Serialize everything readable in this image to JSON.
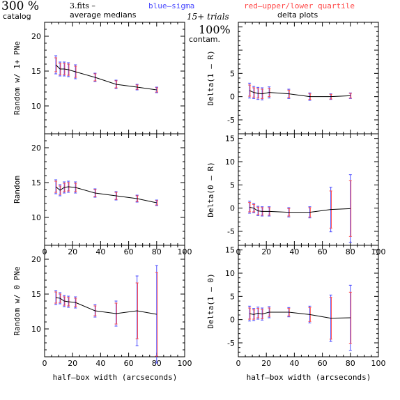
{
  "header": {
    "top_left_big": "300 %",
    "top_left_small": "catalog",
    "file_label": "3.fits  –",
    "subtitle": "average medians",
    "blue_label": "blue–sigma",
    "red_label": "red–upper/lower quartile",
    "trials": "15+ trials",
    "contam_big": "100%",
    "contam_small": "contam.",
    "delta_title": "delta plots"
  },
  "colors": {
    "blue": "#4a4aff",
    "red": "#ff4a4a",
    "line": "#000000"
  },
  "xlabel": "half–box width (arcseconds)",
  "chart_data": [
    {
      "type": "line",
      "panel": "left-top",
      "ylabel": "Random w/ 1+ PNe",
      "xlim": [
        0,
        100
      ],
      "ylim": [
        6,
        22
      ],
      "xticks": [
        "0",
        "20",
        "40",
        "60",
        "80",
        "100"
      ],
      "xticks_shown": false,
      "yticks": [
        "10",
        "15",
        "20"
      ],
      "x": [
        8,
        11,
        14,
        17,
        22,
        36,
        51,
        66,
        80
      ],
      "y": [
        15.9,
        15.3,
        15.3,
        15.2,
        14.9,
        14.1,
        13.1,
        12.7,
        12.3
      ],
      "blue_err": [
        1.3,
        1.0,
        1.0,
        1.0,
        1.0,
        0.6,
        0.6,
        0.4,
        0.4
      ],
      "red_err": [
        1.0,
        0.8,
        0.8,
        0.8,
        0.8,
        0.5,
        0.5,
        0.3,
        0.3
      ]
    },
    {
      "type": "line",
      "panel": "right-top",
      "ylabel": "Delta(1 – R)",
      "xlim": [
        0,
        100
      ],
      "ylim": [
        -8,
        16
      ],
      "xticks": [
        "0",
        "20",
        "40",
        "60",
        "80",
        "100"
      ],
      "xticks_shown": false,
      "yticks": [
        "-5",
        "0",
        "5"
      ],
      "x": [
        8,
        11,
        14,
        17,
        22,
        36,
        51,
        66,
        80
      ],
      "y": [
        1.3,
        0.9,
        0.7,
        0.6,
        0.9,
        0.6,
        0.0,
        0.0,
        0.2
      ],
      "blue_err": [
        1.6,
        1.3,
        1.3,
        1.3,
        1.2,
        1.0,
        0.8,
        0.6,
        0.6
      ],
      "red_err": [
        1.2,
        1.0,
        1.0,
        1.0,
        0.9,
        0.8,
        0.6,
        0.5,
        0.5
      ]
    },
    {
      "type": "line",
      "panel": "left-middle",
      "ylabel": "Random",
      "xlim": [
        0,
        100
      ],
      "ylim": [
        6,
        22
      ],
      "xticks": [
        "0",
        "20",
        "40",
        "60",
        "80",
        "100"
      ],
      "xticks_shown": true,
      "yticks": [
        "10",
        "15",
        "20"
      ],
      "x": [
        8,
        11,
        14,
        17,
        22,
        36,
        51,
        66,
        80
      ],
      "y": [
        14.4,
        13.9,
        14.3,
        14.4,
        14.3,
        13.5,
        13.1,
        12.7,
        12.1
      ],
      "blue_err": [
        1.0,
        0.8,
        0.8,
        0.8,
        0.8,
        0.6,
        0.6,
        0.5,
        0.4
      ],
      "red_err": [
        0.8,
        0.6,
        0.6,
        0.6,
        0.6,
        0.5,
        0.5,
        0.4,
        0.3
      ]
    },
    {
      "type": "line",
      "panel": "right-middle",
      "ylabel": "Delta(0 – R)",
      "xlim": [
        0,
        100
      ],
      "ylim": [
        -8,
        16
      ],
      "xticks": [
        "0",
        "20",
        "40",
        "60",
        "80",
        "100"
      ],
      "xticks_shown": true,
      "yticks": [
        "-5",
        "0",
        "5",
        "10",
        "15"
      ],
      "x": [
        8,
        11,
        14,
        17,
        22,
        36,
        51,
        66,
        80
      ],
      "y": [
        0.2,
        0.0,
        -0.6,
        -0.7,
        -0.7,
        -0.9,
        -0.9,
        -0.3,
        -0.1
      ],
      "blue_err": [
        1.3,
        1.0,
        1.0,
        1.0,
        1.0,
        1.0,
        1.2,
        4.8,
        7.3
      ],
      "red_err": [
        1.0,
        0.8,
        0.8,
        0.8,
        0.8,
        0.8,
        1.0,
        4.0,
        6.0
      ]
    },
    {
      "type": "line",
      "panel": "left-bottom",
      "ylabel": "Random w/ 0 PNe",
      "xlim": [
        0,
        100
      ],
      "ylim": [
        6,
        22
      ],
      "xticks": [
        "0",
        "20",
        "40",
        "60",
        "80",
        "100"
      ],
      "xticks_shown": true,
      "yticks": [
        "10",
        "15",
        "20"
      ],
      "x": [
        8,
        11,
        14,
        17,
        22,
        36,
        51,
        66,
        80
      ],
      "y": [
        14.5,
        14.4,
        14.0,
        13.9,
        13.8,
        12.6,
        12.2,
        12.6,
        12.1
      ],
      "blue_err": [
        1.0,
        0.8,
        0.8,
        0.8,
        0.8,
        0.9,
        1.8,
        5.0,
        7.0
      ],
      "red_err": [
        0.8,
        0.6,
        0.6,
        0.6,
        0.6,
        0.7,
        1.5,
        4.0,
        6.0
      ]
    },
    {
      "type": "line",
      "panel": "right-bottom",
      "ylabel": "Delta(1 – 0)",
      "xlim": [
        0,
        100
      ],
      "ylim": [
        -8,
        16
      ],
      "xticks": [
        "0",
        "20",
        "40",
        "60",
        "80",
        "100"
      ],
      "xticks_shown": true,
      "yticks": [
        "-5",
        "0",
        "5",
        "10",
        "15"
      ],
      "x": [
        8,
        11,
        14,
        17,
        22,
        36,
        51,
        66,
        80
      ],
      "y": [
        1.3,
        1.1,
        1.4,
        1.2,
        1.6,
        1.6,
        1.1,
        0.3,
        0.4
      ],
      "blue_err": [
        1.6,
        1.3,
        1.3,
        1.3,
        1.2,
        1.0,
        1.8,
        5.0,
        7.0
      ],
      "red_err": [
        1.2,
        1.0,
        1.0,
        1.0,
        0.9,
        0.8,
        1.5,
        4.5,
        5.5
      ]
    }
  ]
}
